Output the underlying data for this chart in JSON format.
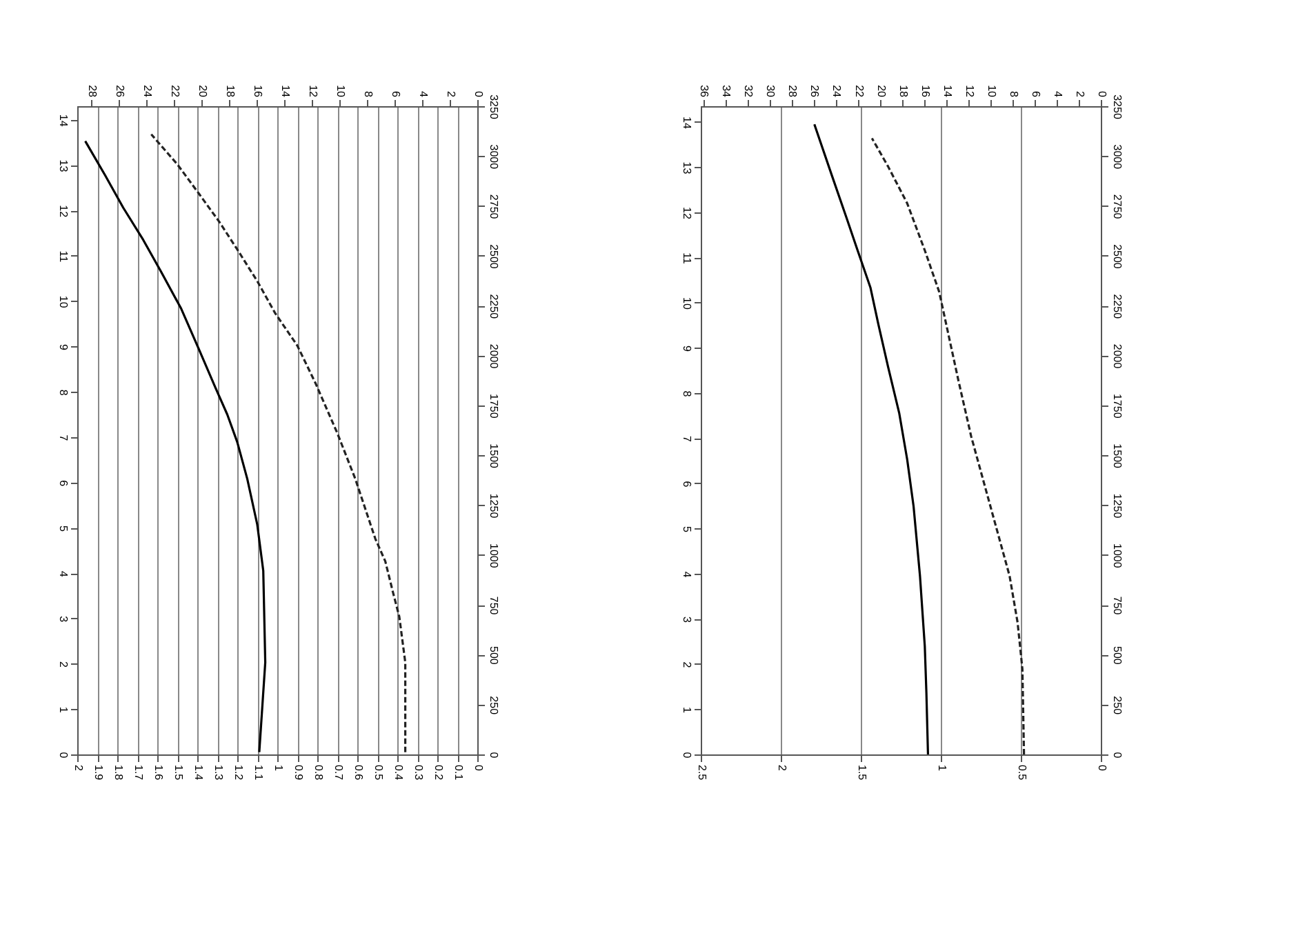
{
  "chart_data": [
    {
      "type": "line",
      "xlim": [
        2,
        0
      ],
      "xticks": [
        2,
        1.9,
        1.8,
        1.7,
        1.6,
        1.5,
        1.4,
        1.3,
        1.2,
        1.1,
        1,
        0.9,
        0.8,
        0.7,
        0.6,
        0.5,
        0.4,
        0.3,
        0.2,
        0.1,
        0
      ],
      "x2lim": [
        29,
        0
      ],
      "x2ticks": [
        28,
        26,
        24,
        22,
        20,
        18,
        16,
        14,
        12,
        10,
        8,
        6,
        4,
        2,
        0
      ],
      "ylim": [
        0,
        14.3
      ],
      "yticks": [
        0,
        1,
        2,
        3,
        4,
        5,
        6,
        7,
        8,
        9,
        10,
        11,
        12,
        13,
        14
      ],
      "y2lim": [
        0,
        3250
      ],
      "y2ticks": [
        0,
        250,
        500,
        750,
        1000,
        1250,
        1500,
        1750,
        2000,
        2250,
        2500,
        2750,
        3000,
        3250
      ],
      "grid": "x",
      "series": [
        {
          "color": "#000000",
          "line_style": "solid",
          "x": [
            1.09,
            1.06,
            1.07,
            1.1,
            1.15,
            1.2,
            1.25,
            1.31,
            1.39,
            1.48,
            1.58,
            1.67,
            1.77,
            1.86,
            1.96
          ],
          "values": [
            0.05,
            2.03,
            4.05,
            5.07,
            6.08,
            6.89,
            7.5,
            8.1,
            8.92,
            9.83,
            10.64,
            11.35,
            12.06,
            12.77,
            13.53
          ]
        },
        {
          "color": "#222222",
          "line_style": "dashed",
          "x": [
            0.36,
            0.36,
            0.39,
            0.42,
            0.46,
            0.51,
            0.61,
            0.7,
            0.81,
            0.9,
            1.01,
            1.1,
            1.2,
            1.29,
            1.39,
            1.5,
            1.63
          ],
          "values": [
            0.05,
            2.03,
            3.04,
            3.55,
            4.26,
            4.76,
            6.08,
            7.09,
            8.2,
            9.02,
            9.73,
            10.44,
            11.14,
            11.75,
            12.36,
            13.02,
            13.68
          ]
        }
      ]
    },
    {
      "type": "line",
      "xlim": [
        2.5,
        0
      ],
      "xticks": [
        2.5,
        2,
        1.5,
        1,
        0.5,
        0
      ],
      "x2lim": [
        36.2,
        0
      ],
      "x2ticks": [
        36,
        34,
        32,
        30,
        28,
        26,
        24,
        22,
        20,
        18,
        16,
        14,
        12,
        10,
        8,
        6,
        4,
        2,
        0
      ],
      "ylim": [
        0,
        14.35
      ],
      "yticks": [
        0,
        1,
        2,
        3,
        4,
        5,
        6,
        7,
        8,
        9,
        10,
        11,
        12,
        13,
        14
      ],
      "y2lim": [
        0,
        3250
      ],
      "y2ticks": [
        0,
        250,
        500,
        750,
        1000,
        1250,
        1500,
        1750,
        2000,
        2250,
        2500,
        2750,
        3000,
        3250
      ],
      "grid": "x",
      "series": [
        {
          "color": "#000000",
          "line_style": "solid",
          "x": [
            1.08,
            1.09,
            1.1,
            1.13,
            1.17,
            1.21,
            1.26,
            1.33,
            1.39,
            1.44,
            1.52,
            1.59,
            1.68,
            1.79
          ],
          "values": [
            0,
            1.37,
            2.4,
            3.95,
            5.49,
            6.53,
            7.56,
            8.59,
            9.52,
            10.34,
            11.16,
            11.89,
            12.81,
            13.95
          ]
        },
        {
          "color": "#222222",
          "line_style": "dashed",
          "x": [
            0.48,
            0.49,
            0.52,
            0.57,
            0.65,
            0.73,
            0.81,
            0.89,
            1.01,
            1.1,
            1.21,
            1.33,
            1.43
          ],
          "values": [
            0,
            1.89,
            2.92,
            3.95,
            4.98,
            6.01,
            7.04,
            8.28,
            10.24,
            11.16,
            12.2,
            13.02,
            13.64
          ]
        }
      ]
    }
  ]
}
